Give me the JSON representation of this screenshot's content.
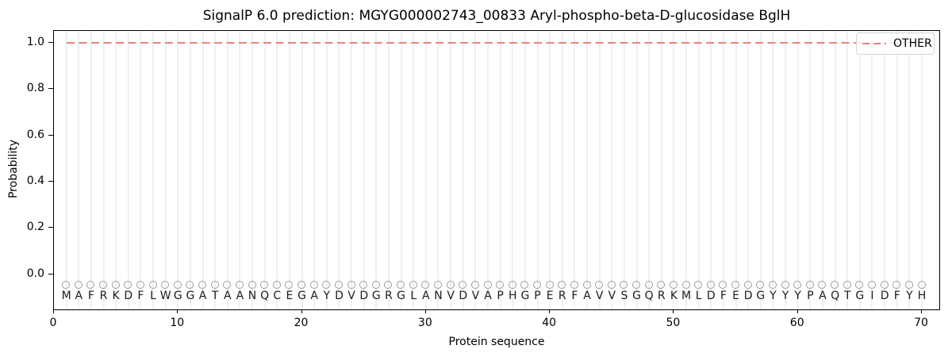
{
  "figure": {
    "title": "SignalP 6.0 prediction: MGYG000002743_00833 Aryl-phospho-beta-D-glucosidase BglH",
    "xlabel": "Protein sequence",
    "ylabel": "Probability",
    "legend": {
      "label": "OTHER",
      "position": "upper right"
    },
    "x_tick_labels": [
      "0",
      "10",
      "20",
      "30",
      "40",
      "50",
      "60",
      "70"
    ],
    "y_tick_labels": [
      "0.0",
      "0.2",
      "0.4",
      "0.6",
      "0.8",
      "1.0"
    ],
    "sequence": "MAFRKDFLWGGATAANQCEGAYDVDGRGLANVDVAPHGPERFAVVSGQRKMLDFEDGYYYPAQTGIDFYH",
    "colors": {
      "other_line": "#f08080",
      "grid": "#f0f0f0",
      "marker_edge": "#9e9e9e",
      "axis": "#000000",
      "legend_border": "#d5d5d5",
      "text": "#000000"
    }
  },
  "chart_data": {
    "type": "line",
    "title": "SignalP 6.0 prediction: MGYG000002743_00833 Aryl-phospho-beta-D-glucosidase BglH",
    "xlabel": "Protein sequence",
    "ylabel": "Probability",
    "xlim": [
      0,
      71.5
    ],
    "ylim": [
      -0.16,
      1.05
    ],
    "x_ticks": [
      0,
      10,
      20,
      30,
      40,
      50,
      60,
      70
    ],
    "y_ticks": [
      0.0,
      0.2,
      0.4,
      0.6,
      0.8,
      1.0
    ],
    "grid": "light vertical gridline at each residue position 1-70",
    "legend_position": "upper right",
    "series": [
      {
        "name": "OTHER",
        "color": "#f08080",
        "linestyle": "dashed",
        "x_start": 1,
        "x_end": 70,
        "y_constant": 1.0,
        "note": "flat dashed line, probability 1.0 for all 70 residues"
      }
    ],
    "sequence_track": {
      "marker": "o",
      "marker_y": -0.05,
      "letter_y": -0.09,
      "x_positions": "1 through 70",
      "sequence": "MAFRKDFLWGGATAANQCEGAYDVDGRGLANVDVAPHGPERFAVVSGQRKMLDFEDGYYYPAQTGIDFYH"
    }
  }
}
